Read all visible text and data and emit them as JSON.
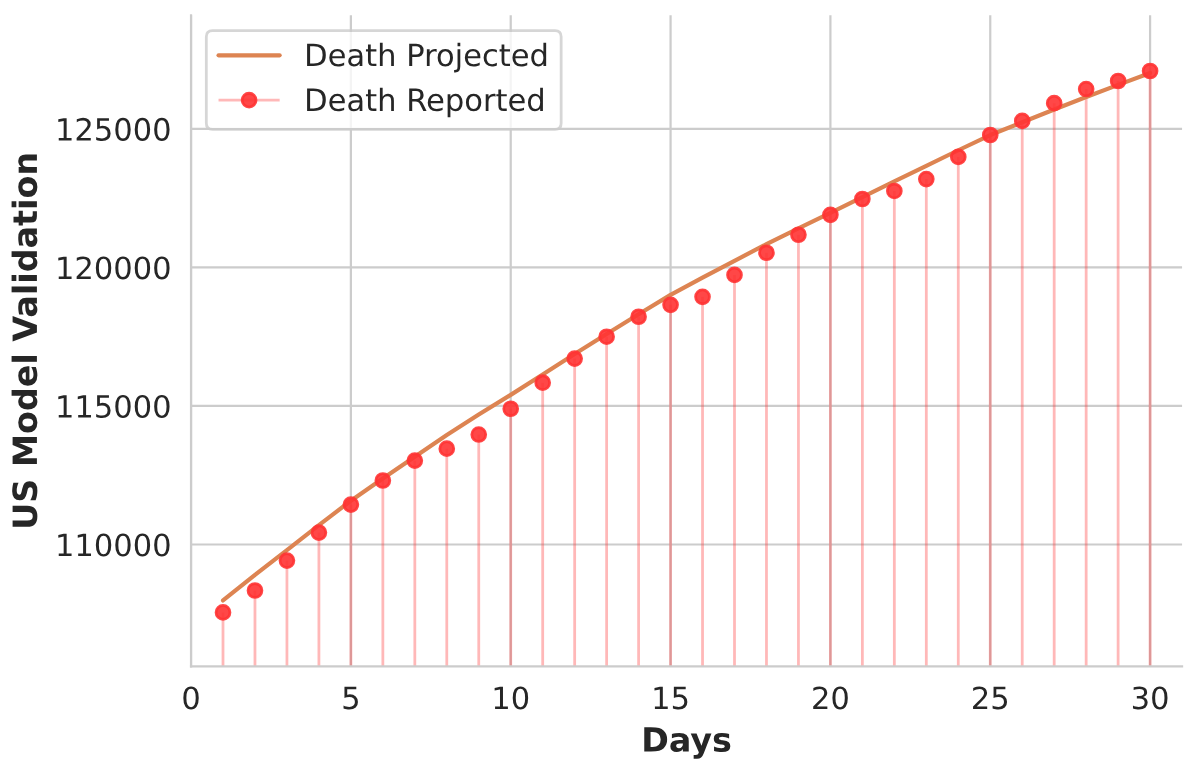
{
  "chart_data": {
    "type": "line",
    "xlabel": "Days",
    "ylabel": "US Model Validation",
    "x": [
      1,
      2,
      3,
      4,
      5,
      6,
      7,
      8,
      9,
      10,
      11,
      12,
      13,
      14,
      15,
      16,
      17,
      18,
      19,
      20,
      21,
      22,
      23,
      24,
      25,
      26,
      27,
      28,
      29,
      30
    ],
    "series": [
      {
        "name": "Death Projected",
        "color": "#dd8452",
        "values": [
          107980,
          108900,
          109800,
          110700,
          111580,
          112380,
          113170,
          113950,
          114690,
          115400,
          116140,
          116880,
          117600,
          118310,
          119010,
          119630,
          120240,
          120840,
          121410,
          121970,
          122540,
          123110,
          123670,
          124230,
          124780,
          125240,
          125700,
          126150,
          126590,
          127020
        ]
      },
      {
        "name": "Death Reported",
        "type": "lollipop",
        "color": "#ff3333",
        "values": [
          107550,
          108340,
          109420,
          110430,
          111440,
          112310,
          113030,
          113460,
          113970,
          114900,
          115840,
          116710,
          117500,
          118220,
          118650,
          118940,
          119730,
          120530,
          121180,
          121900,
          122470,
          122760,
          123190,
          123990,
          124780,
          125290,
          125930,
          126440,
          126730,
          127090
        ]
      }
    ],
    "xlim": [
      0,
      31
    ],
    "xticks": [
      0,
      5,
      10,
      15,
      20,
      25,
      30
    ],
    "ylim": [
      105600,
      129100
    ],
    "yticks": [
      110000,
      115000,
      120000,
      125000
    ],
    "grid": true,
    "legend": "top left"
  }
}
